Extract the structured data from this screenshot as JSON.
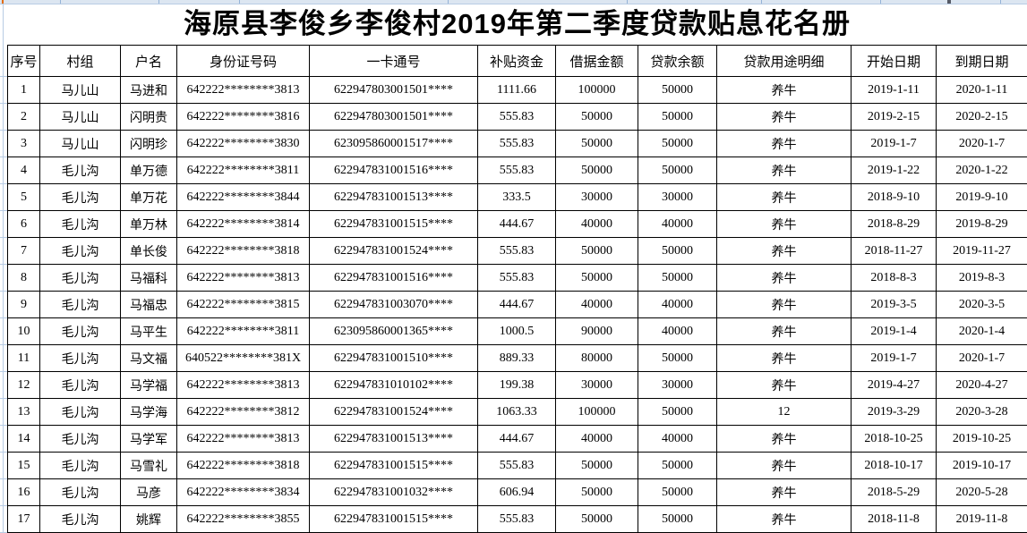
{
  "title": "海原县李俊乡李俊村2019年第二季度贷款贴息花名册",
  "table": {
    "headers": [
      "序号",
      "村组",
      "户名",
      "身份证号码",
      "一卡通号",
      "补贴资金",
      "借据金额",
      "贷款余额",
      "贷款用途明细",
      "开始日期",
      "到期日期"
    ],
    "rows": [
      [
        "1",
        "马儿山",
        "马进和",
        "642222********3813",
        "622947803001501****",
        "1111.66",
        "100000",
        "50000",
        "养牛",
        "2019-1-11",
        "2020-1-11"
      ],
      [
        "2",
        "马儿山",
        "闪明贵",
        "642222********3816",
        "622947803001501****",
        "555.83",
        "50000",
        "50000",
        "养牛",
        "2019-2-15",
        "2020-2-15"
      ],
      [
        "3",
        "马儿山",
        "闪明珍",
        "642222********3830",
        "623095860001517****",
        "555.83",
        "50000",
        "50000",
        "养牛",
        "2019-1-7",
        "2020-1-7"
      ],
      [
        "4",
        "毛儿沟",
        "单万德",
        "642222********3811",
        "622947831001516****",
        "555.83",
        "50000",
        "50000",
        "养牛",
        "2019-1-22",
        "2020-1-22"
      ],
      [
        "5",
        "毛儿沟",
        "单万花",
        "642222********3844",
        "622947831001513****",
        "333.5",
        "30000",
        "30000",
        "养牛",
        "2018-9-10",
        "2019-9-10"
      ],
      [
        "6",
        "毛儿沟",
        "单万林",
        "642222********3814",
        "622947831001515****",
        "444.67",
        "40000",
        "40000",
        "养牛",
        "2018-8-29",
        "2019-8-29"
      ],
      [
        "7",
        "毛儿沟",
        "单长俊",
        "642222********3818",
        "622947831001524****",
        "555.83",
        "50000",
        "50000",
        "养牛",
        "2018-11-27",
        "2019-11-27"
      ],
      [
        "8",
        "毛儿沟",
        "马福科",
        "642222********3813",
        "622947831001516****",
        "555.83",
        "50000",
        "50000",
        "养牛",
        "2018-8-3",
        "2019-8-3"
      ],
      [
        "9",
        "毛儿沟",
        "马福忠",
        "642222********3815",
        "622947831003070****",
        "444.67",
        "40000",
        "40000",
        "养牛",
        "2019-3-5",
        "2020-3-5"
      ],
      [
        "10",
        "毛儿沟",
        "马平生",
        "642222********3811",
        "623095860001365****",
        "1000.5",
        "90000",
        "40000",
        "养牛",
        "2019-1-4",
        "2020-1-4"
      ],
      [
        "11",
        "毛儿沟",
        "马文福",
        "640522********381X",
        "622947831001510****",
        "889.33",
        "80000",
        "50000",
        "养牛",
        "2019-1-7",
        "2020-1-7"
      ],
      [
        "12",
        "毛儿沟",
        "马学福",
        "642222********3813",
        "622947831010102****",
        "199.38",
        "30000",
        "30000",
        "养牛",
        "2019-4-27",
        "2020-4-27"
      ],
      [
        "13",
        "毛儿沟",
        "马学海",
        "642222********3812",
        "622947831001524****",
        "1063.33",
        "100000",
        "50000",
        "12",
        "2019-3-29",
        "2020-3-28"
      ],
      [
        "14",
        "毛儿沟",
        "马学军",
        "642222********3813",
        "622947831001513****",
        "444.67",
        "40000",
        "40000",
        "养牛",
        "2018-10-25",
        "2019-10-25"
      ],
      [
        "15",
        "毛儿沟",
        "马雪礼",
        "642222********3818",
        "622947831001515****",
        "555.83",
        "50000",
        "50000",
        "养牛",
        "2018-10-17",
        "2019-10-17"
      ],
      [
        "16",
        "毛儿沟",
        "马彦",
        "642222********3834",
        "622947831001032****",
        "606.94",
        "50000",
        "50000",
        "养牛",
        "2018-5-29",
        "2020-5-28"
      ],
      [
        "17",
        "毛儿沟",
        "姚辉",
        "642222********3855",
        "622947831001515****",
        "555.83",
        "50000",
        "50000",
        "养牛",
        "2018-11-8",
        "2019-11-8"
      ]
    ]
  },
  "colors": {
    "table_border": "#000000",
    "gridline": "#b8cce4",
    "gridline_dark": "#95b3d7",
    "strip_bg": "#dce6f1",
    "artifact_orange": "#e36c0a",
    "text": "#000000"
  }
}
